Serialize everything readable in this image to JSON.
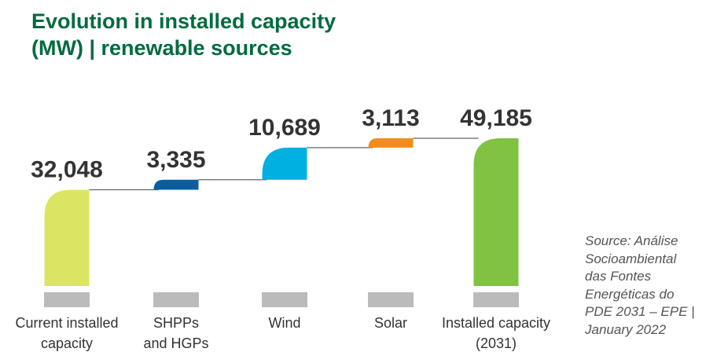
{
  "title_lines": [
    "Evolution in installed capacity",
    "(MW) | renewable sources"
  ],
  "source_lines": [
    "Source: Análise",
    "Socioambiental",
    "das Fontes",
    "Energéticas do",
    "PDE 2031 – EPE |",
    "January 2022"
  ],
  "chart_data": {
    "type": "bar",
    "subtype": "waterfall",
    "title": "Evolution in installed capacity (MW) | renewable sources",
    "xlabel": "",
    "ylabel": "",
    "grid": false,
    "legend": "none",
    "categories": [
      [
        "Current installed",
        "capacity"
      ],
      [
        "SHPPs",
        "and HGPs"
      ],
      [
        "Wind"
      ],
      [
        "Solar"
      ],
      [
        "Installed capacity",
        "(2031)"
      ]
    ],
    "values": [
      32048,
      3335,
      10689,
      3113,
      49185
    ],
    "value_labels": [
      "32,048",
      "3,335",
      "10,689",
      "3,113",
      "49,185"
    ],
    "bar_roles": [
      "total",
      "increment",
      "increment",
      "increment",
      "total"
    ],
    "colors": [
      "#dce464",
      "#0a5ea0",
      "#00b0e0",
      "#f08c1e",
      "#80c242"
    ],
    "connector_color": "#666666",
    "category_marker_color": "#bbbbbb"
  }
}
